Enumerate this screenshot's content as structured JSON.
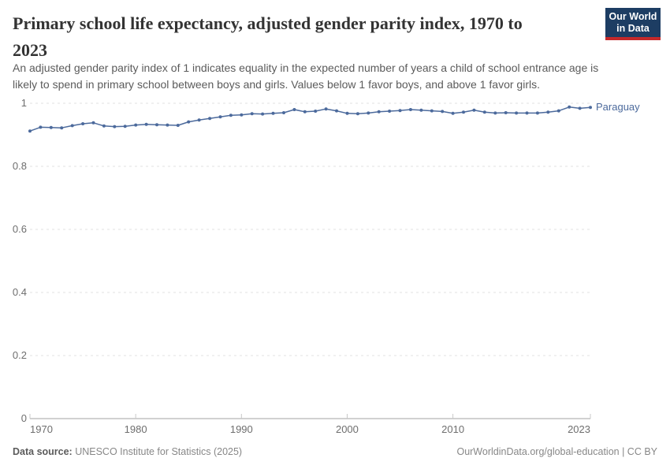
{
  "header": {
    "title_line1": "Primary school life expectancy, adjusted gender parity index, 1970 to",
    "title_line2": "2023",
    "subtitle_line1": "An adjusted gender parity index of 1 indicates equality in the expected number of years a child of school entrance age is",
    "subtitle_line2": "likely to spend in primary school between boys and girls. Values below 1 favor boys, and above 1 favor girls.",
    "logo": {
      "line1": "Our World",
      "line2": "in Data",
      "bg_color": "#1d3d63",
      "bar_color": "#c5292a"
    }
  },
  "chart_data": {
    "type": "line",
    "title": "Primary school life expectancy, adjusted gender parity index, 1970 to 2023",
    "xlabel": "",
    "ylabel": "",
    "xlim": [
      1970,
      2023
    ],
    "ylim": [
      0,
      1
    ],
    "grid": "horizontal-dashed",
    "legend_position": "end-of-line-label",
    "x_ticks": [
      1970,
      1980,
      1990,
      2000,
      2010,
      2023
    ],
    "y_ticks": [
      0,
      0.2,
      0.4,
      0.6,
      0.8,
      1
    ],
    "colors": {
      "line": "#4c6a9c",
      "grid": "#e0e0e0",
      "axis": "#a3a3a3",
      "tick": "#c8c8c8",
      "tick_text": "#6e6e6e"
    },
    "series": [
      {
        "name": "Paraguay",
        "color": "#4c6a9c",
        "x": [
          1970,
          1971,
          1972,
          1973,
          1974,
          1975,
          1976,
          1977,
          1978,
          1979,
          1980,
          1981,
          1982,
          1983,
          1984,
          1985,
          1986,
          1987,
          1988,
          1989,
          1990,
          1991,
          1992,
          1993,
          1994,
          1995,
          1996,
          1997,
          1998,
          1999,
          2000,
          2001,
          2002,
          2003,
          2004,
          2005,
          2006,
          2007,
          2008,
          2009,
          2010,
          2011,
          2012,
          2013,
          2014,
          2015,
          2016,
          2017,
          2018,
          2019,
          2020,
          2021,
          2022,
          2023
        ],
        "values": [
          0.912,
          0.924,
          0.923,
          0.922,
          0.929,
          0.935,
          0.938,
          0.928,
          0.926,
          0.927,
          0.931,
          0.933,
          0.932,
          0.931,
          0.93,
          0.941,
          0.947,
          0.952,
          0.957,
          0.962,
          0.963,
          0.967,
          0.966,
          0.968,
          0.97,
          0.98,
          0.973,
          0.975,
          0.982,
          0.976,
          0.968,
          0.967,
          0.969,
          0.973,
          0.975,
          0.977,
          0.98,
          0.978,
          0.976,
          0.974,
          0.968,
          0.972,
          0.978,
          0.972,
          0.969,
          0.97,
          0.969,
          0.969,
          0.969,
          0.972,
          0.976,
          0.988,
          0.984,
          0.987
        ]
      }
    ]
  },
  "footer": {
    "source_label": "Data source:",
    "source_text": " UNESCO Institute for Statistics (2025)",
    "link_text": "OurWorldinData.org/global-education | CC BY"
  }
}
